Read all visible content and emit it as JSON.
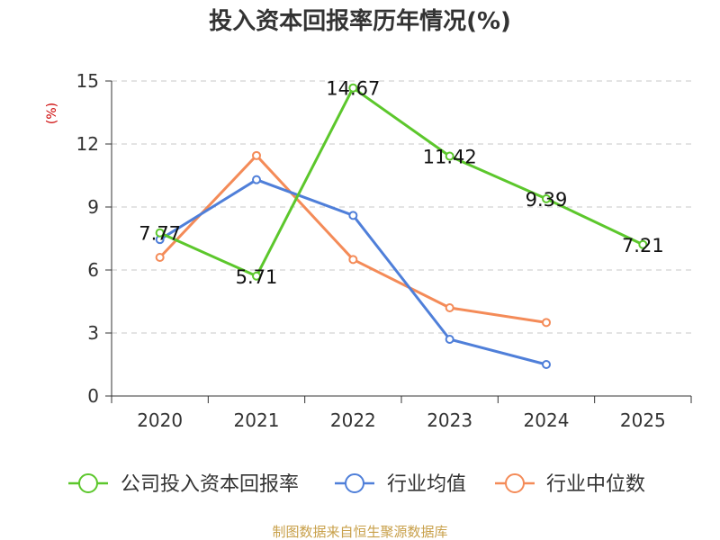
{
  "chart_data": {
    "type": "line",
    "title": "投入资本回报率历年情况(%)",
    "ylabel": "(%)",
    "xlabel": "",
    "categories": [
      "2020",
      "2021",
      "2022",
      "2023",
      "2024",
      "2025"
    ],
    "ylim": [
      0,
      15
    ],
    "yticks": [
      0,
      3,
      6,
      9,
      12,
      15
    ],
    "grid": "horizontal dashed",
    "legend_position": "bottom",
    "series": [
      {
        "name": "公司投入资本回报率",
        "color": "#5cc72c",
        "values": [
          7.77,
          5.71,
          14.67,
          11.42,
          9.39,
          7.21
        ],
        "labels": [
          "7.77",
          "5.71",
          "14.67",
          "11.42",
          "9.39",
          "7.21"
        ]
      },
      {
        "name": "行业均值",
        "color": "#4f7fd9",
        "values": [
          7.45,
          10.3,
          8.6,
          2.7,
          1.5,
          null
        ]
      },
      {
        "name": "行业中位数",
        "color": "#f48b58",
        "values": [
          6.6,
          11.45,
          6.5,
          4.2,
          3.5,
          null
        ]
      }
    ]
  },
  "source_text": "制图数据来自恒生聚源数据库"
}
